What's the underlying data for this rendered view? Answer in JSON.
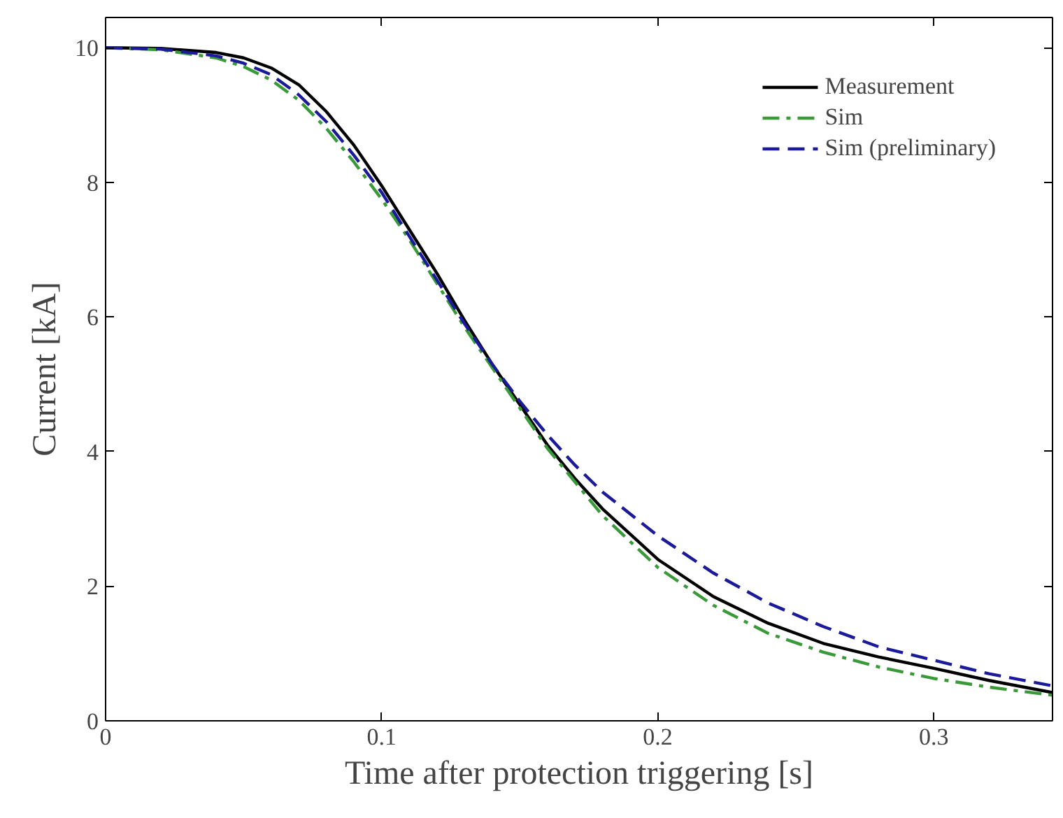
{
  "chart_data": {
    "type": "line",
    "xlabel": "Time after protection triggering [s]",
    "ylabel": "Current [kA]",
    "x": [
      0,
      0.02,
      0.04,
      0.05,
      0.06,
      0.07,
      0.08,
      0.09,
      0.1,
      0.11,
      0.12,
      0.13,
      0.14,
      0.15,
      0.16,
      0.17,
      0.18,
      0.2,
      0.22,
      0.24,
      0.26,
      0.28,
      0.3,
      0.32,
      0.343
    ],
    "series": [
      {
        "name": "Measurement",
        "color": "#000000",
        "line_style": "solid",
        "values": [
          10,
          9.99,
          9.93,
          9.85,
          9.7,
          9.45,
          9.05,
          8.55,
          7.95,
          7.3,
          6.65,
          5.95,
          5.3,
          4.7,
          4.1,
          3.6,
          3.15,
          2.4,
          1.85,
          1.45,
          1.15,
          0.95,
          0.78,
          0.6,
          0.42
        ]
      },
      {
        "name": "Sim",
        "color": "#3a9a3a",
        "line_style": "dashdot",
        "values": [
          10,
          9.97,
          9.85,
          9.72,
          9.52,
          9.22,
          8.8,
          8.3,
          7.75,
          7.15,
          6.5,
          5.85,
          5.25,
          4.65,
          4.05,
          3.55,
          3.05,
          2.28,
          1.72,
          1.3,
          1.02,
          0.8,
          0.63,
          0.5,
          0.38
        ]
      },
      {
        "name": "Sim (preliminary)",
        "color": "#1a1a9a",
        "line_style": "dashed",
        "values": [
          10,
          9.98,
          9.88,
          9.77,
          9.6,
          9.3,
          8.9,
          8.4,
          7.85,
          7.2,
          6.55,
          5.9,
          5.3,
          4.75,
          4.25,
          3.8,
          3.4,
          2.75,
          2.2,
          1.75,
          1.4,
          1.1,
          0.9,
          0.7,
          0.52
        ]
      }
    ],
    "xlim": [
      0,
      0.343
    ],
    "xticks": [
      0,
      0.1,
      0.2,
      0.3
    ],
    "ylim": [
      0,
      10.45
    ],
    "yticks": [
      0,
      2,
      4,
      6,
      8,
      10
    ],
    "grid": false,
    "legend": "top right",
    "marker": "none"
  }
}
